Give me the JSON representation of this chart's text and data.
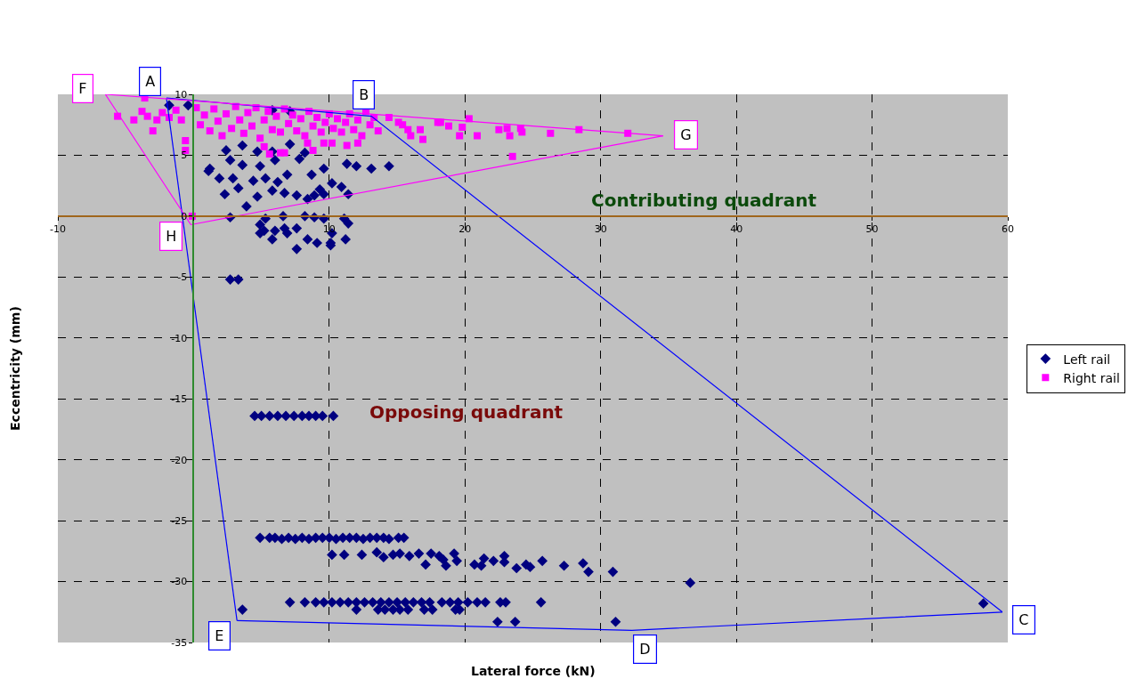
{
  "chart_data": {
    "type": "scatter",
    "xlabel": "Lateral force (kN)",
    "ylabel": "Eccentricity (mm)",
    "xlim": [
      -10,
      60
    ],
    "xticks": [
      -10,
      {
        "value": 0,
        "label": null
      },
      10,
      20,
      30,
      40,
      50,
      60
    ],
    "ylim": [
      -35,
      10
    ],
    "yticks": [
      -35,
      -30,
      -25,
      -20,
      -15,
      -10,
      -5,
      0,
      5,
      10
    ],
    "grid": true,
    "legend": "right",
    "series": [
      {
        "name": "Left rail",
        "color": "#000080",
        "marker": "diamond",
        "x": [
          -1.8,
          -0.4,
          5.8,
          7.1,
          2.4,
          3.6,
          4.7,
          5.8,
          7.1,
          8.2,
          1.1,
          2.7,
          3.6,
          4.9,
          6.0,
          7.8,
          9.6,
          11.3,
          12.0,
          13.1,
          14.4,
          1.9,
          2.9,
          4.4,
          5.3,
          6.2,
          6.9,
          8.7,
          2.3,
          3.3,
          4.7,
          5.8,
          6.7,
          7.6,
          8.4,
          9.3,
          10.2,
          10.9,
          11.4,
          3.9,
          8.9,
          9.6,
          1.2,
          2.7,
          4.9,
          5.3,
          6.0,
          6.6,
          6.9,
          7.6,
          8.2,
          8.9,
          8.4,
          7.6,
          9.6,
          10.2,
          11.1,
          11.4,
          11.2,
          4.9,
          5.8,
          6.7,
          9.1,
          5.2,
          10.1,
          10.1,
          2.7,
          3.3,
          4.5,
          5.0,
          5.6,
          6.2,
          6.8,
          7.4,
          8.0,
          8.5,
          9.0,
          9.5,
          10.3,
          4.9,
          5.6,
          6.0,
          6.5,
          7.0,
          7.5,
          8.0,
          8.5,
          9.0,
          9.5,
          10.0,
          10.5,
          11.0,
          11.5,
          12.0,
          12.5,
          13.0,
          13.5,
          14.0,
          14.4,
          15.1,
          15.5,
          10.2,
          11.1,
          12.4,
          13.5,
          14.0,
          14.7,
          15.2,
          15.9,
          16.6,
          17.1,
          17.5,
          18.1,
          18.4,
          18.6,
          19.2,
          19.4,
          20.7,
          21.4,
          21.2,
          22.1,
          22.9,
          22.9,
          23.8,
          24.5,
          24.8,
          25.7,
          27.3,
          28.7,
          29.1,
          30.9,
          36.6,
          58.2,
          7.1,
          8.2,
          9.0,
          9.6,
          10.2,
          10.8,
          11.4,
          12.0,
          12.6,
          13.2,
          13.8,
          14.4,
          15.0,
          15.6,
          16.2,
          16.8,
          17.4,
          18.3,
          18.9,
          19.5,
          20.2,
          20.9,
          21.5,
          22.6,
          23.0,
          25.6,
          12.0,
          13.6,
          14.1,
          14.7,
          15.2,
          15.8,
          17.0,
          17.6,
          19.3,
          19.6,
          22.4,
          23.7,
          31.1,
          3.6
        ],
        "values": [
          9.1,
          9.1,
          8.7,
          8.6,
          5.4,
          5.8,
          5.3,
          5.3,
          5.9,
          5.2,
          3.7,
          4.6,
          4.2,
          4.1,
          4.6,
          4.7,
          3.9,
          4.3,
          4.1,
          3.9,
          4.1,
          3.1,
          3.1,
          2.9,
          3.1,
          2.8,
          3.4,
          3.4,
          1.8,
          2.3,
          1.6,
          2.1,
          1.9,
          1.7,
          1.4,
          2.2,
          2.7,
          2.4,
          1.8,
          0.8,
          1.7,
          1.8,
          3.9,
          -0.1,
          -0.7,
          -0.2,
          -1.2,
          0,
          -1.4,
          -1.0,
          0,
          -0.1,
          -1.9,
          -2.7,
          -0.2,
          -1.4,
          -0.2,
          -0.6,
          -1.9,
          -1.4,
          -1.9,
          -1.0,
          -2.2,
          -1.2,
          -2.2,
          -2.4,
          -5.2,
          -5.2,
          -16.4,
          -16.4,
          -16.4,
          -16.4,
          -16.4,
          -16.4,
          -16.4,
          -16.4,
          -16.4,
          -16.4,
          -16.4,
          -26.4,
          -26.4,
          -26.4,
          -26.5,
          -26.4,
          -26.5,
          -26.4,
          -26.5,
          -26.4,
          -26.4,
          -26.4,
          -26.5,
          -26.4,
          -26.4,
          -26.4,
          -26.5,
          -26.4,
          -26.4,
          -26.4,
          -26.5,
          -26.4,
          -26.4,
          -27.8,
          -27.8,
          -27.8,
          -27.6,
          -28.0,
          -27.8,
          -27.7,
          -27.9,
          -27.7,
          -28.6,
          -27.7,
          -27.9,
          -28.2,
          -28.7,
          -27.7,
          -28.3,
          -28.6,
          -28.1,
          -28.7,
          -28.3,
          -27.9,
          -28.4,
          -28.9,
          -28.6,
          -28.8,
          -28.3,
          -28.7,
          -28.5,
          -29.2,
          -29.2,
          -30.1,
          -31.8,
          -31.7,
          -31.7,
          -31.7,
          -31.7,
          -31.7,
          -31.7,
          -31.7,
          -31.7,
          -31.7,
          -31.7,
          -31.7,
          -31.7,
          -31.7,
          -31.7,
          -31.7,
          -31.7,
          -31.7,
          -31.7,
          -31.7,
          -31.7,
          -31.7,
          -31.7,
          -31.7,
          -31.7,
          -31.7,
          -31.7,
          -32.3,
          -32.3,
          -32.3,
          -32.3,
          -32.3,
          -32.3,
          -32.3,
          -32.3,
          -32.3,
          -32.3,
          -33.3,
          -33.3,
          -33.3,
          -32.3
        ]
      },
      {
        "name": "Right rail",
        "color": "#ff00ff",
        "marker": "square",
        "x": [
          -3.6,
          -5.6,
          -4.4,
          -3.8,
          -3.4,
          -3.0,
          -2.7,
          -2.3,
          -1.8,
          -1.3,
          -0.9,
          -0.6,
          -0.6,
          -0.1,
          0.2,
          0.5,
          0.8,
          1.2,
          1.5,
          1.8,
          2.1,
          2.4,
          2.8,
          3.1,
          3.4,
          3.7,
          4.0,
          4.3,
          4.6,
          4.9,
          5.2,
          5.5,
          5.8,
          6.1,
          6.4,
          6.7,
          7.0,
          7.3,
          7.6,
          7.9,
          8.2,
          8.5,
          8.8,
          9.1,
          9.4,
          9.7,
          10.0,
          10.3,
          10.6,
          10.9,
          11.2,
          11.5,
          11.8,
          12.1,
          12.4,
          12.7,
          13.0,
          13.3,
          13.6,
          5.6,
          6.4,
          6.7,
          8.8,
          5.2,
          9.6,
          10.2,
          11.3,
          12.1,
          8.4,
          14.4,
          15.1,
          15.8,
          16.0,
          16.9,
          16.7,
          18.2,
          15.4,
          18.0,
          18.8,
          19.8,
          20.3,
          19.6,
          20.9,
          22.5,
          23.1,
          23.3,
          24.1,
          24.2,
          26.3,
          28.4,
          32.0,
          23.5
        ],
        "values": [
          9.7,
          8.2,
          7.9,
          8.6,
          8.2,
          7.0,
          7.9,
          8.5,
          8.1,
          8.7,
          7.9,
          6.2,
          5.4,
          0,
          8.9,
          7.5,
          8.3,
          7.0,
          8.8,
          7.8,
          6.6,
          8.4,
          7.2,
          9.0,
          7.9,
          6.8,
          8.5,
          7.4,
          8.9,
          6.4,
          7.9,
          8.6,
          7.1,
          8.2,
          6.9,
          8.8,
          7.6,
          8.3,
          7.0,
          8.0,
          6.6,
          8.6,
          7.4,
          8.1,
          6.9,
          7.7,
          8.4,
          7.2,
          8.0,
          6.9,
          7.7,
          8.4,
          7.1,
          7.9,
          6.6,
          8.6,
          7.5,
          8.1,
          7.0,
          5.1,
          5.2,
          5.2,
          5.4,
          5.7,
          6.0,
          6.0,
          5.8,
          6.0,
          6.0,
          8.1,
          7.7,
          7.1,
          6.6,
          6.3,
          7.1,
          7.7,
          7.5,
          7.7,
          7.4,
          7.3,
          8.0,
          6.6,
          6.6,
          7.1,
          7.2,
          6.6,
          7.2,
          6.9,
          6.8,
          7.1,
          6.8,
          4.9
        ]
      },
      {
        "type": "line",
        "color": "#0000ff",
        "x": [
          -2.0,
          13.1,
          59.6
        ],
        "values": [
          9.7,
          8.2,
          -32.5
        ]
      },
      {
        "type": "line",
        "color": "#0000ff",
        "x": [
          3.2,
          32.3,
          59.6
        ],
        "values": [
          -33.2,
          -34.0,
          -32.5
        ]
      },
      {
        "type": "line",
        "color": "#0000ff",
        "x": [
          -2.0,
          3.2
        ],
        "values": [
          9.7,
          -33.2
        ]
      },
      {
        "type": "line",
        "color": "#ff00ff",
        "x": [
          -6.5,
          34.6
        ],
        "values": [
          10,
          6.6
        ]
      },
      {
        "type": "line",
        "color": "#ff00ff",
        "x": [
          -0.2,
          34.6
        ],
        "values": [
          -0.7,
          6.6
        ]
      },
      {
        "type": "line",
        "color": "#ff00ff",
        "x": [
          -6.5,
          -0.2
        ],
        "values": [
          10,
          -0.7
        ]
      }
    ],
    "annotations": [
      {
        "text": "A",
        "x": -2.0,
        "y": 9.7
      },
      {
        "text": "B",
        "x": 13.1,
        "y": 8.2
      },
      {
        "text": "C",
        "x": 59.6,
        "y": -32.5
      },
      {
        "text": "D",
        "x": 32.3,
        "y": -34.0
      },
      {
        "text": "E",
        "x": 3.2,
        "y": -33.2
      },
      {
        "text": "F",
        "x": -6.5,
        "y": 10
      },
      {
        "text": "G",
        "x": 34.6,
        "y": 6.6
      },
      {
        "text": "H",
        "x": -0.2,
        "y": -0.7
      },
      "Contributing quadrant",
      "Opposing quadrant"
    ]
  }
}
